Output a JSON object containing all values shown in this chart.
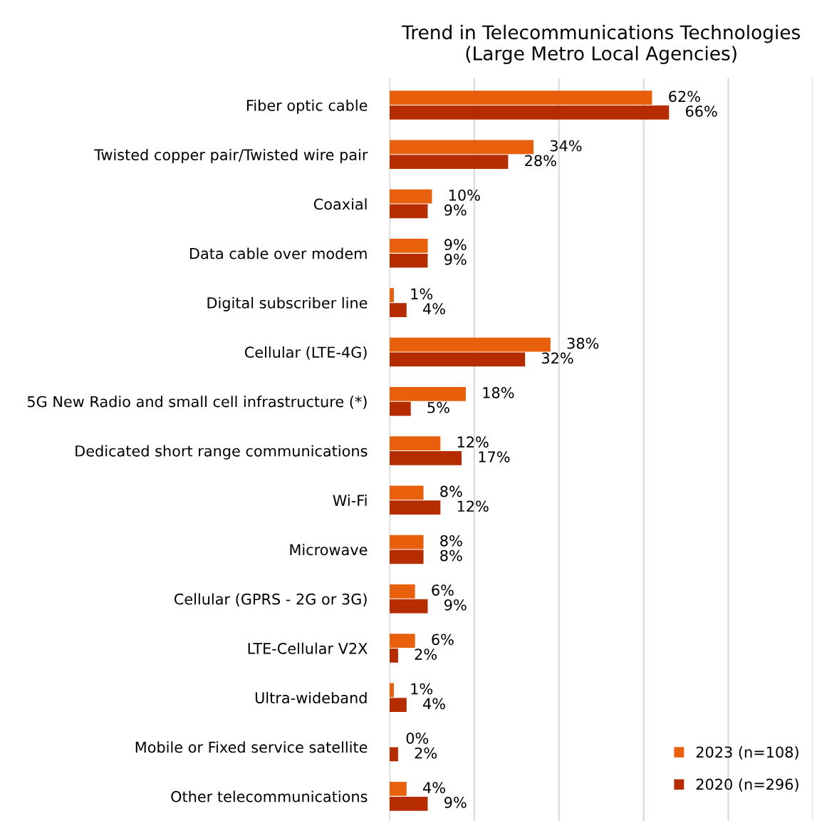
{
  "chart_data": {
    "type": "bar",
    "orientation": "horizontal",
    "title": "Trend in Telecommunications Technologies\n(Large Metro Local Agencies)",
    "categories": [
      "Fiber optic cable",
      "Twisted copper pair/Twisted wire pair",
      "Coaxial",
      "Data cable over modem",
      "Digital subscriber line",
      "Cellular (LTE-4G)",
      "5G New Radio and small cell infrastructure (*)",
      "Dedicated short range communications",
      "Wi-Fi",
      "Microwave",
      "Cellular (GPRS - 2G or 3G)",
      "LTE-Cellular V2X",
      "Ultra-wideband",
      "Mobile or Fixed service satellite",
      "Other telecommunications"
    ],
    "series": [
      {
        "name": "2023 (n=108)",
        "color": "#e8600c",
        "values": [
          62,
          34,
          10,
          9,
          1,
          38,
          18,
          12,
          8,
          8,
          6,
          6,
          1,
          0,
          4
        ],
        "value_labels": [
          "62%",
          "34%",
          "10%",
          "9%",
          "1%",
          "38%",
          "18%",
          "12%",
          "8%",
          "8%",
          "6%",
          "6%",
          "1%",
          "0%",
          "4%"
        ]
      },
      {
        "name": "2020 (n=296)",
        "color": "#b42c00",
        "values": [
          66,
          28,
          9,
          9,
          4,
          32,
          5,
          17,
          12,
          8,
          9,
          2,
          4,
          2,
          9
        ],
        "value_labels": [
          "66%",
          "28%",
          "9%",
          "9%",
          "4%",
          "32%",
          "5%",
          "17%",
          "12%",
          "8%",
          "9%",
          "2%",
          "4%",
          "2%",
          "9%"
        ]
      }
    ],
    "xlim": [
      0,
      100
    ],
    "xticks": [
      {
        "value": 0,
        "label": null
      },
      {
        "value": 20,
        "label": null
      },
      {
        "value": 40,
        "label": null
      },
      {
        "value": 60,
        "label": null
      },
      {
        "value": 80,
        "label": null
      },
      {
        "value": 100,
        "label": null
      }
    ],
    "tick_labels": "y",
    "grid": "x",
    "legend": "bottom right"
  }
}
